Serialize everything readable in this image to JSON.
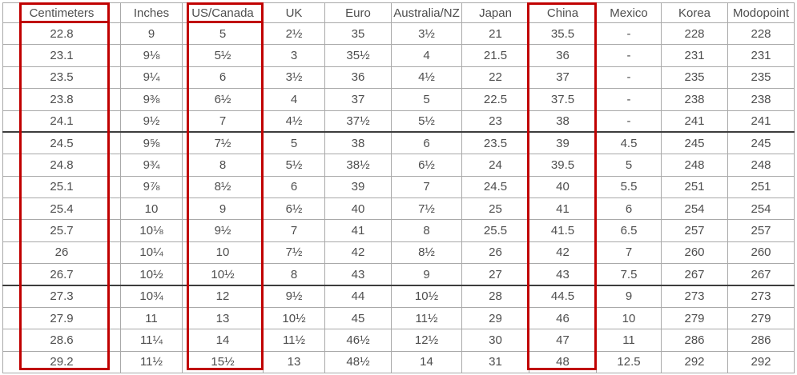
{
  "chart_data": {
    "type": "table",
    "columns": [
      "Centimeters",
      "Inches",
      "US/Canada",
      "UK",
      "Euro",
      "Australia/NZ",
      "Japan",
      "China",
      "Mexico",
      "Korea",
      "Modopoint"
    ],
    "rows": [
      [
        "22.8",
        "9",
        "5",
        "2½",
        "35",
        "3½",
        "21",
        "35.5",
        "-",
        "228",
        "228"
      ],
      [
        "23.1",
        "9⅛",
        "5½",
        "3",
        "35½",
        "4",
        "21.5",
        "36",
        "-",
        "231",
        "231"
      ],
      [
        "23.5",
        "9¼",
        "6",
        "3½",
        "36",
        "4½",
        "22",
        "37",
        "-",
        "235",
        "235"
      ],
      [
        "23.8",
        "9⅜",
        "6½",
        "4",
        "37",
        "5",
        "22.5",
        "37.5",
        "-",
        "238",
        "238"
      ],
      [
        "24.1",
        "9½",
        "7",
        "4½",
        "37½",
        "5½",
        "23",
        "38",
        "-",
        "241",
        "241"
      ],
      [
        "24.5",
        "9⅝",
        "7½",
        "5",
        "38",
        "6",
        "23.5",
        "39",
        "4.5",
        "245",
        "245"
      ],
      [
        "24.8",
        "9¾",
        "8",
        "5½",
        "38½",
        "6½",
        "24",
        "39.5",
        "5",
        "248",
        "248"
      ],
      [
        "25.1",
        "9⅞",
        "8½",
        "6",
        "39",
        "7",
        "24.5",
        "40",
        "5.5",
        "251",
        "251"
      ],
      [
        "25.4",
        "10",
        "9",
        "6½",
        "40",
        "7½",
        "25",
        "41",
        "6",
        "254",
        "254"
      ],
      [
        "25.7",
        "10⅛",
        "9½",
        "7",
        "41",
        "8",
        "25.5",
        "41.5",
        "6.5",
        "257",
        "257"
      ],
      [
        "26",
        "10¼",
        "10",
        "7½",
        "42",
        "8½",
        "26",
        "42",
        "7",
        "260",
        "260"
      ],
      [
        "26.7",
        "10½",
        "10½",
        "8",
        "43",
        "9",
        "27",
        "43",
        "7.5",
        "267",
        "267"
      ],
      [
        "27.3",
        "10¾",
        "12",
        "9½",
        "44",
        "10½",
        "28",
        "44.5",
        "9",
        "273",
        "273"
      ],
      [
        "27.9",
        "11",
        "13",
        "10½",
        "45",
        "11½",
        "29",
        "46",
        "10",
        "279",
        "279"
      ],
      [
        "28.6",
        "11¼",
        "14",
        "11½",
        "46½",
        "12½",
        "30",
        "47",
        "11",
        "286",
        "286"
      ],
      [
        "29.2",
        "11½",
        "15½",
        "13",
        "48½",
        "14",
        "31",
        "48",
        "12.5",
        "292",
        "292"
      ]
    ],
    "thick_separator_before_rows": [
      5,
      12
    ],
    "thick_vertical_border_before_columns": [
      5,
      6,
      10
    ],
    "highlighted_columns": [
      "Centimeters",
      "US/Canada",
      "China"
    ],
    "highlight_color": "#c00000",
    "layout_hints": {
      "grid": "on",
      "legend": "none"
    }
  }
}
